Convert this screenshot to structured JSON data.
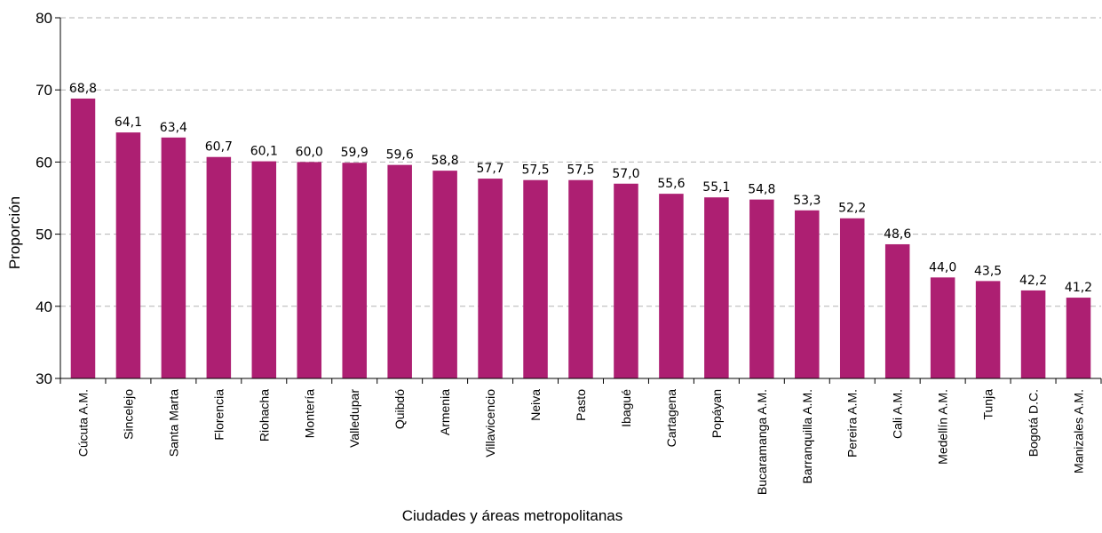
{
  "chart_data": {
    "type": "bar",
    "title": "",
    "xlabel": "Ciudades y áreas metropolitanas",
    "ylabel": "Proporción",
    "ylim": [
      30,
      80
    ],
    "yticks": [
      30,
      40,
      50,
      60,
      70,
      80
    ],
    "grid": true,
    "bar_color": "#AD1F72",
    "categories": [
      "Cúcuta A.M.",
      "Sincelejo",
      "Santa Marta",
      "Florencia",
      "Riohacha",
      "Montería",
      "Valledupar",
      "Quibdó",
      "Armenia",
      "Villavicencio",
      "Neiva",
      "Pasto",
      "Ibagué",
      "Cartagena",
      "Popáyan",
      "Bucaramanga A.M.",
      "Barranquilla A.M.",
      "Pereira A.M.",
      "Cali A.M.",
      "Medellín A.M.",
      "Tunja",
      "Bogotá D.C.",
      "Manizales A.M."
    ],
    "values": [
      68.8,
      64.1,
      63.4,
      60.7,
      60.1,
      60.0,
      59.9,
      59.6,
      58.8,
      57.7,
      57.5,
      57.5,
      57.0,
      55.6,
      55.1,
      54.8,
      53.3,
      52.2,
      48.6,
      44.0,
      43.5,
      42.2,
      41.2
    ],
    "value_labels": [
      "68,8",
      "64,1",
      "63,4",
      "60,7",
      "60,1",
      "60,0",
      "59,9",
      "59,6",
      "58,8",
      "57,7",
      "57,5",
      "57,5",
      "57,0",
      "55,6",
      "55,1",
      "54,8",
      "53,3",
      "52,2",
      "48,6",
      "44,0",
      "43,5",
      "42,2",
      "41,2"
    ]
  }
}
